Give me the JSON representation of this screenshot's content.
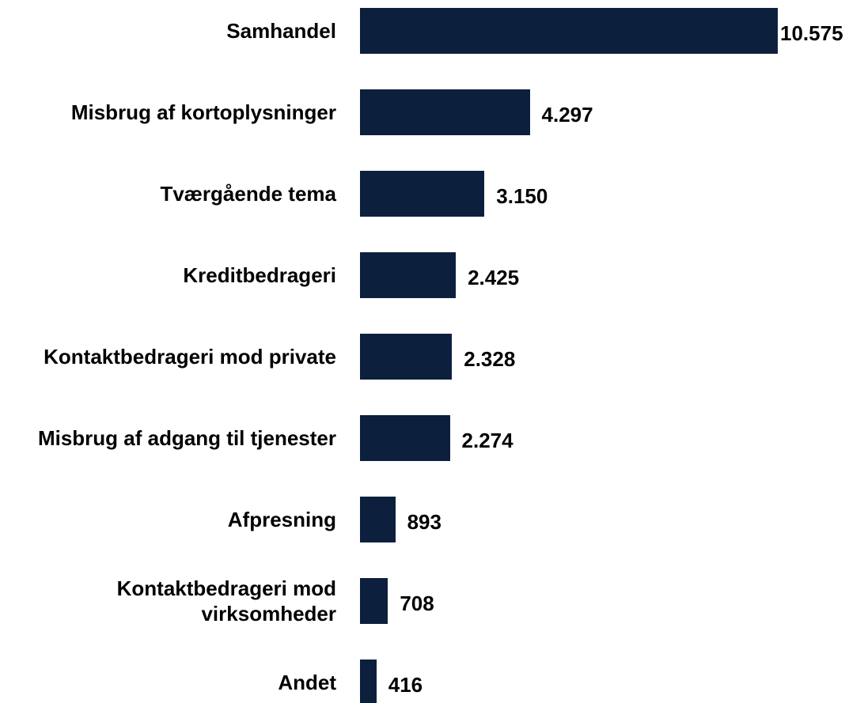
{
  "chart_data": {
    "type": "bar",
    "orientation": "horizontal",
    "categories": [
      "Samhandel",
      "Misbrug af kortoplysninger",
      "Tværgående tema",
      "Kreditbedrageri",
      "Kontaktbedrageri mod private",
      "Misbrug af adgang til tjenester",
      "Afpresning",
      "Kontaktbedrageri mod virksomheder",
      "Andet"
    ],
    "values": [
      10575,
      4297,
      3150,
      2425,
      2328,
      2274,
      893,
      708,
      416
    ],
    "value_labels": [
      "10.575",
      "4.297",
      "3.150",
      "2.425",
      "2.328",
      "2.274",
      "893",
      "708",
      "416"
    ],
    "color": "#0c1f3d"
  }
}
